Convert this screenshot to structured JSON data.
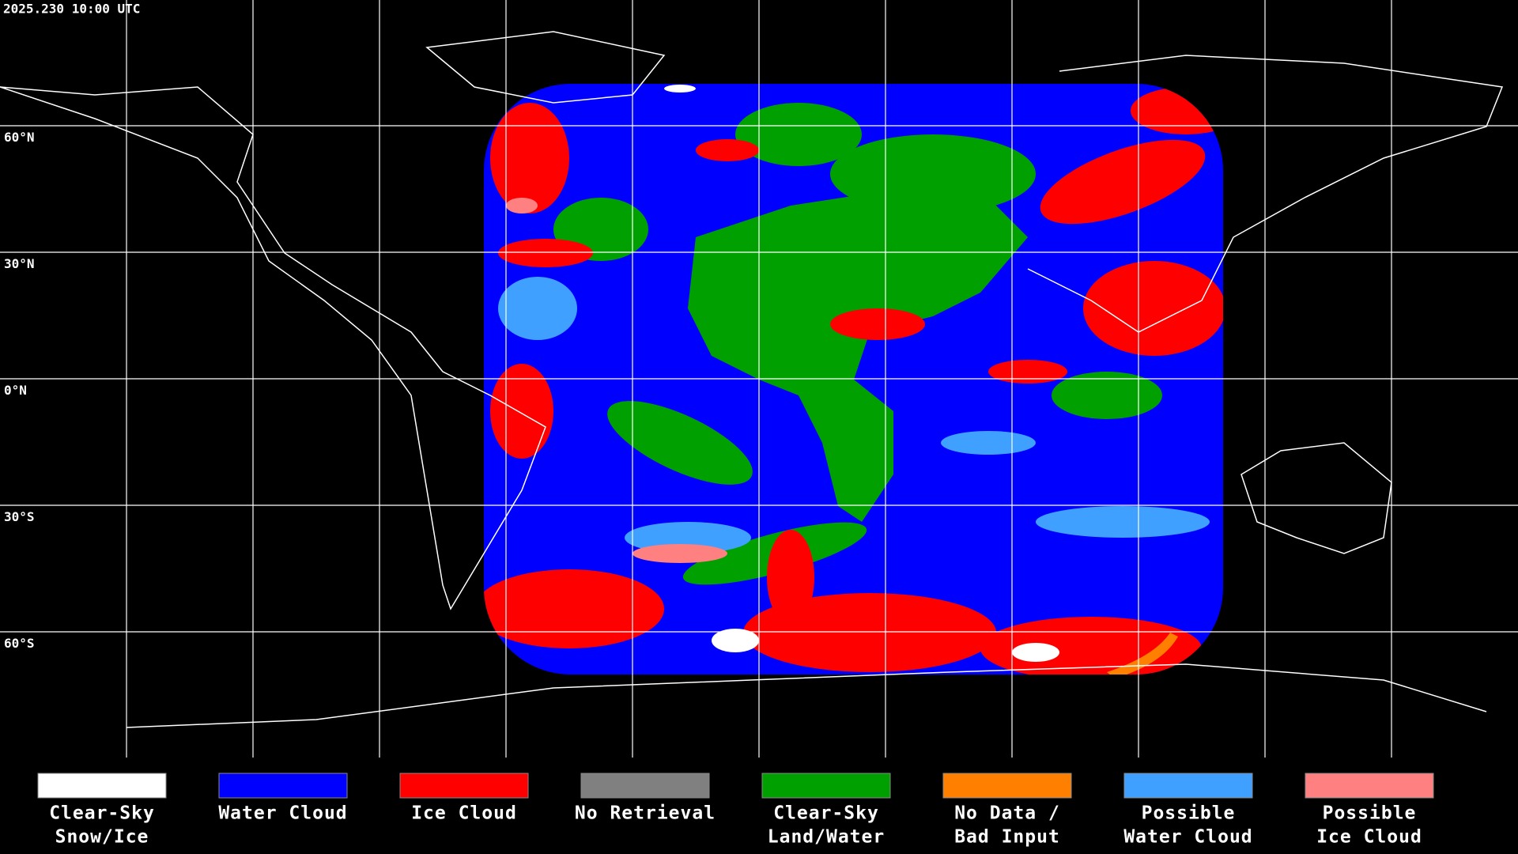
{
  "timestamp": "2025.230 10:00 UTC",
  "latitude_labels": [
    "60°N",
    "30°N",
    "0°N",
    "30°S",
    "60°S"
  ],
  "legend": [
    {
      "label": [
        "Clear-Sky",
        "Snow/Ice"
      ],
      "color": "#ffffff"
    },
    {
      "label": [
        "Water Cloud"
      ],
      "color": "#0000ff"
    },
    {
      "label": [
        "Ice Cloud"
      ],
      "color": "#ff0000"
    },
    {
      "label": [
        "No Retrieval"
      ],
      "color": "#808080"
    },
    {
      "label": [
        "Clear-Sky",
        "Land/Water"
      ],
      "color": "#00a000"
    },
    {
      "label": [
        "No Data /",
        "Bad Input"
      ],
      "color": "#ff8000"
    },
    {
      "label": [
        "Possible",
        "Water Cloud"
      ],
      "color": "#3fa0ff"
    },
    {
      "label": [
        "Possible",
        "Ice Cloud"
      ],
      "color": "#ff8080"
    }
  ]
}
